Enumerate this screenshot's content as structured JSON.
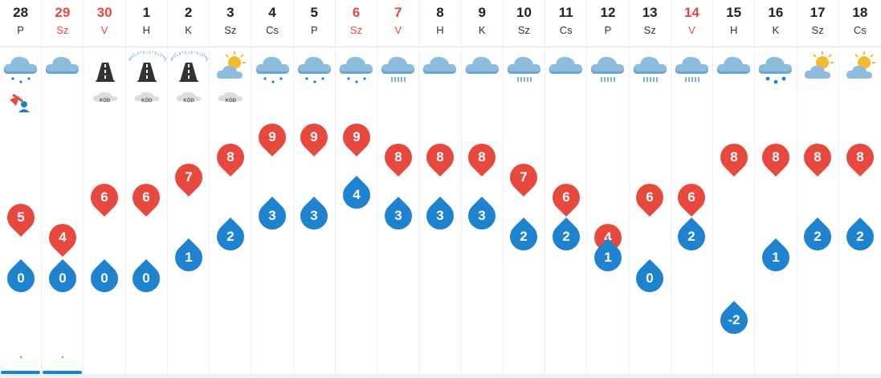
{
  "days": [
    {
      "day": "28",
      "name": "P",
      "weekend": false,
      "icon": "cloud-drizzle-icon",
      "flag": "wind-warning-icon",
      "max": "5",
      "min": "0",
      "precip_dot": true,
      "bar": true
    },
    {
      "day": "29",
      "name": "Sz",
      "weekend": true,
      "icon": "cloud-icon",
      "flag": "",
      "max": "4",
      "min": "0",
      "precip_dot": true,
      "bar": true
    },
    {
      "day": "30",
      "name": "V",
      "weekend": true,
      "icon": "icy-road-icon",
      "flag": "fog-icon",
      "max": "6",
      "min": "0",
      "precip_dot": false,
      "bar": false
    },
    {
      "day": "1",
      "name": "H",
      "weekend": false,
      "icon": "icy-road-snow-icon",
      "flag": "fog-icon",
      "max": "6",
      "min": "0",
      "precip_dot": false,
      "bar": false
    },
    {
      "day": "2",
      "name": "K",
      "weekend": false,
      "icon": "icy-road-snow-icon",
      "flag": "fog-icon",
      "max": "7",
      "min": "1",
      "precip_dot": false,
      "bar": false
    },
    {
      "day": "3",
      "name": "Sz",
      "weekend": false,
      "icon": "sun-cloud-icon",
      "flag": "fog-icon",
      "max": "8",
      "min": "2",
      "precip_dot": false,
      "bar": false
    },
    {
      "day": "4",
      "name": "Cs",
      "weekend": false,
      "icon": "cloud-drizzle-icon",
      "flag": "",
      "max": "9",
      "min": "3",
      "precip_dot": false,
      "bar": false
    },
    {
      "day": "5",
      "name": "P",
      "weekend": false,
      "icon": "cloud-drizzle-icon",
      "flag": "",
      "max": "9",
      "min": "3",
      "precip_dot": false,
      "bar": false
    },
    {
      "day": "6",
      "name": "Sz",
      "weekend": true,
      "icon": "cloud-drizzle-icon",
      "flag": "",
      "max": "9",
      "min": "4",
      "precip_dot": false,
      "bar": false
    },
    {
      "day": "7",
      "name": "V",
      "weekend": true,
      "icon": "cloud-rain-icon",
      "flag": "",
      "max": "8",
      "min": "3",
      "precip_dot": false,
      "bar": false
    },
    {
      "day": "8",
      "name": "H",
      "weekend": false,
      "icon": "cloud-icon",
      "flag": "",
      "max": "8",
      "min": "3",
      "precip_dot": false,
      "bar": false
    },
    {
      "day": "9",
      "name": "K",
      "weekend": false,
      "icon": "cloud-icon",
      "flag": "",
      "max": "8",
      "min": "3",
      "precip_dot": false,
      "bar": false
    },
    {
      "day": "10",
      "name": "Sz",
      "weekend": false,
      "icon": "cloud-rain-icon",
      "flag": "",
      "max": "7",
      "min": "2",
      "precip_dot": false,
      "bar": false
    },
    {
      "day": "11",
      "name": "Cs",
      "weekend": false,
      "icon": "cloud-icon",
      "flag": "",
      "max": "6",
      "min": "2",
      "precip_dot": false,
      "bar": false
    },
    {
      "day": "12",
      "name": "P",
      "weekend": false,
      "icon": "cloud-rain-icon",
      "flag": "",
      "max": "4",
      "min": "1",
      "precip_dot": false,
      "bar": false
    },
    {
      "day": "13",
      "name": "Sz",
      "weekend": false,
      "icon": "cloud-rain-icon",
      "flag": "",
      "max": "6",
      "min": "0",
      "precip_dot": false,
      "bar": false
    },
    {
      "day": "14",
      "name": "V",
      "weekend": true,
      "icon": "cloud-rain-icon",
      "flag": "",
      "max": "6",
      "min": "2",
      "precip_dot": false,
      "bar": false
    },
    {
      "day": "15",
      "name": "H",
      "weekend": false,
      "icon": "cloud-icon",
      "flag": "",
      "max": "8",
      "min": "-2",
      "precip_dot": false,
      "bar": false
    },
    {
      "day": "16",
      "name": "K",
      "weekend": false,
      "icon": "cloud-heavy-drizzle-icon",
      "flag": "",
      "max": "8",
      "min": "1",
      "precip_dot": false,
      "bar": false
    },
    {
      "day": "17",
      "name": "Sz",
      "weekend": false,
      "icon": "sun-cloud-icon",
      "flag": "",
      "max": "8",
      "min": "2",
      "precip_dot": false,
      "bar": false
    },
    {
      "day": "18",
      "name": "Cs",
      "weekend": false,
      "icon": "sun-cloud-icon",
      "flag": "",
      "max": "8",
      "min": "2",
      "precip_dot": false,
      "bar": false
    }
  ],
  "fog_label": "KÖD",
  "colors": {
    "max": "#e8493f",
    "min": "#1e82cf",
    "weekend": "#e8483e",
    "cloud": "#8dbcdc"
  }
}
